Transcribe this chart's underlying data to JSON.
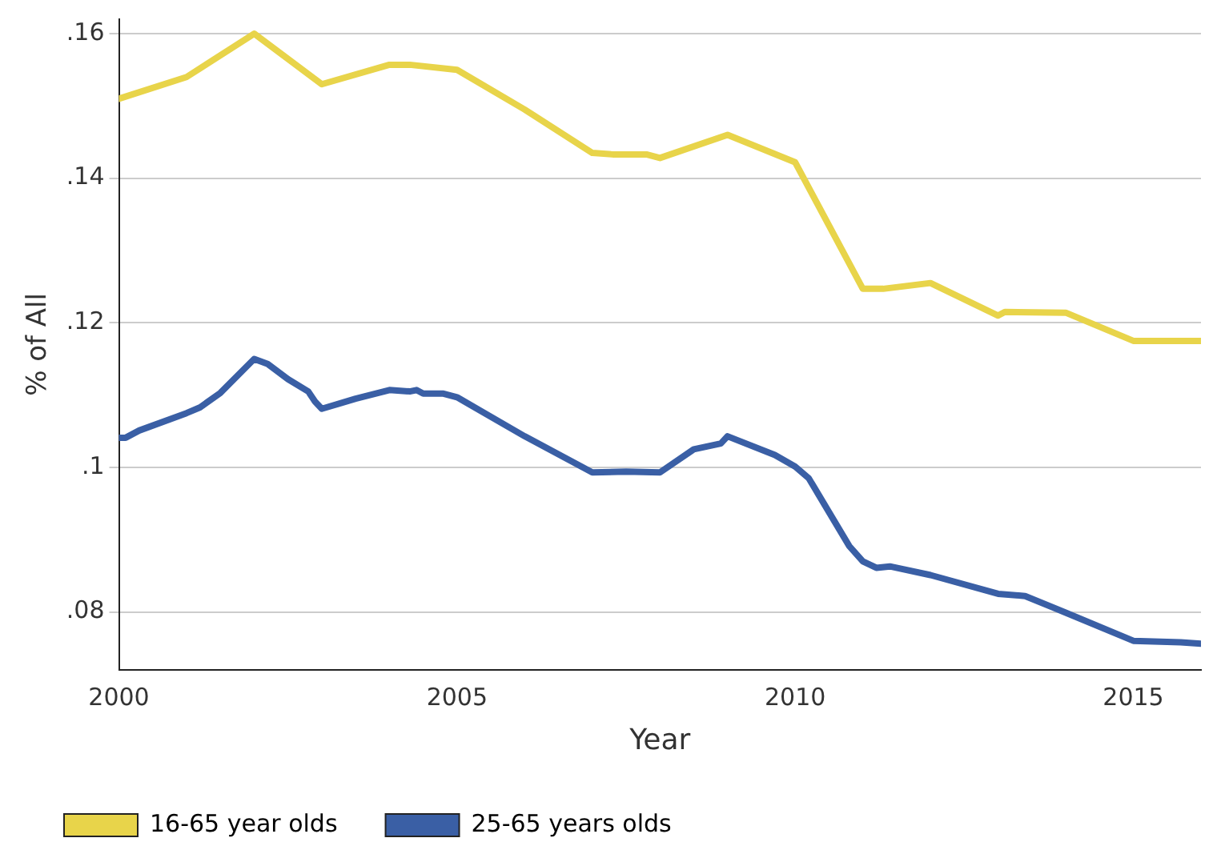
{
  "chart_data": {
    "type": "line",
    "xlabel": "Year",
    "ylabel": "% of All",
    "xlim": [
      2000,
      2016
    ],
    "ylim": [
      0.072,
      0.162
    ],
    "xticks": [
      2000,
      2005,
      2010,
      2015
    ],
    "yticks": [
      {
        "value": 0.08,
        "label": ".08"
      },
      {
        "value": 0.1,
        "label": ".1"
      },
      {
        "value": 0.12,
        "label": ".12"
      },
      {
        "value": 0.14,
        "label": ".14"
      },
      {
        "value": 0.16,
        "label": ".16"
      }
    ],
    "grid": "y",
    "legend": "bottom",
    "marker": "none",
    "line_style": "solid",
    "series": [
      {
        "name": "16-65 year olds",
        "color": "#e8d44a",
        "x": [
          2000,
          2001,
          2002,
          2003,
          2004,
          2004.3,
          2005,
          2006,
          2007,
          2007.3,
          2007.8,
          2008,
          2009,
          2010,
          2011,
          2011.3,
          2012,
          2013,
          2013.1,
          2014,
          2015,
          2016
        ],
        "values": [
          0.151,
          0.154,
          0.16,
          0.153,
          0.1557,
          0.1557,
          0.155,
          0.1495,
          0.1435,
          0.1433,
          0.1433,
          0.1428,
          0.146,
          0.1422,
          0.1247,
          0.1247,
          0.1255,
          0.121,
          0.1215,
          0.1214,
          0.1175,
          0.1175
        ]
      },
      {
        "name": "25-65 years olds",
        "color": "#3a5fa5",
        "x": [
          2000,
          2000.1,
          2000.3,
          2001,
          2001.2,
          2001.5,
          2002,
          2002.2,
          2002.5,
          2002.8,
          2002.9,
          2003,
          2003.5,
          2004,
          2004.3,
          2004.4,
          2004.5,
          2004.8,
          2005,
          2006,
          2007,
          2007.5,
          2008,
          2008.5,
          2008.9,
          2009,
          2009.7,
          2010,
          2010.2,
          2010.8,
          2011,
          2011.2,
          2011.4,
          2012,
          2013,
          2013.4,
          2014,
          2015,
          2015.7,
          2016
        ],
        "values": [
          0.1041,
          0.1041,
          0.1051,
          0.1075,
          0.1083,
          0.1103,
          0.115,
          0.1143,
          0.1122,
          0.1105,
          0.1091,
          0.1081,
          0.1095,
          0.1107,
          0.1105,
          0.1107,
          0.1102,
          0.1102,
          0.1097,
          0.1043,
          0.0993,
          0.0994,
          0.0993,
          0.1025,
          0.1033,
          0.1043,
          0.1017,
          0.1001,
          0.0985,
          0.0891,
          0.087,
          0.0861,
          0.0863,
          0.0851,
          0.0825,
          0.0822,
          0.0799,
          0.076,
          0.0758,
          0.0756
        ]
      }
    ]
  }
}
